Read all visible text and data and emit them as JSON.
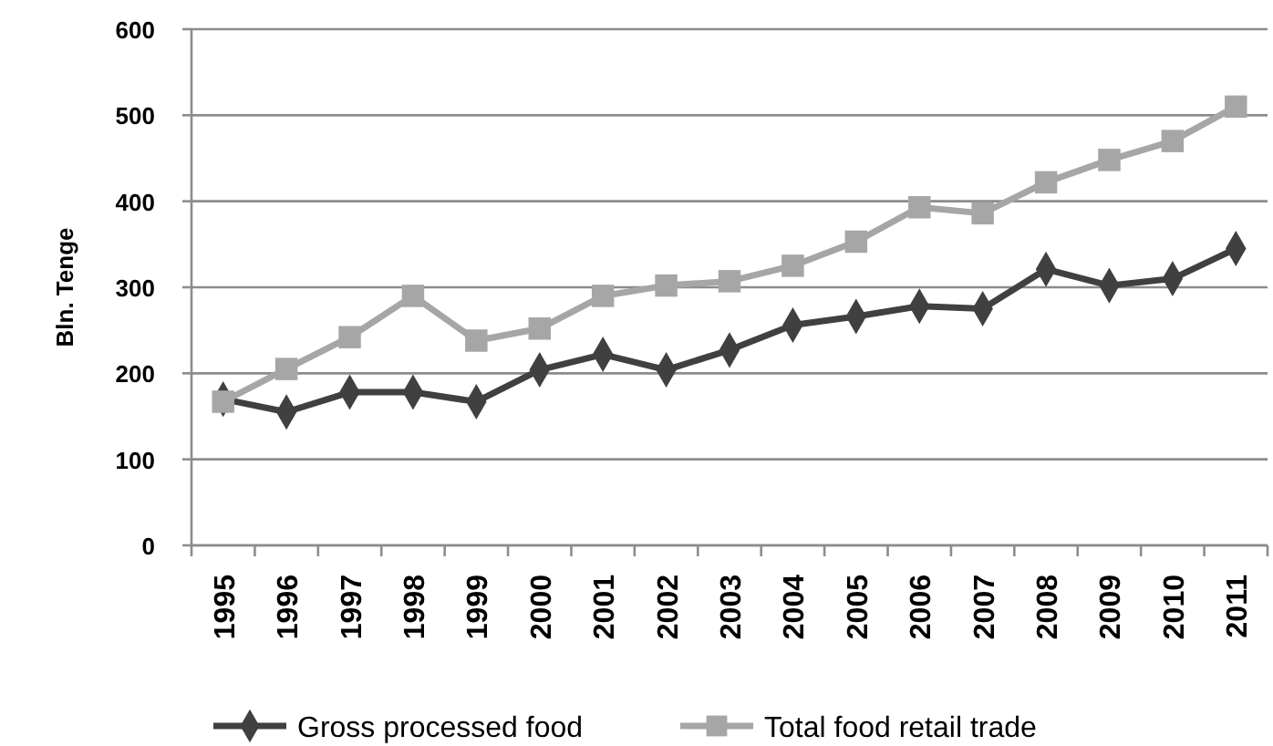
{
  "chart_data": {
    "type": "line",
    "ylabel": "Bln. Tenge",
    "categories": [
      "1995",
      "1996",
      "1997",
      "1998",
      "1999",
      "2000",
      "2001",
      "2002",
      "2003",
      "2004",
      "2005",
      "2006",
      "2007",
      "2008",
      "2009",
      "2010",
      "2011"
    ],
    "series": [
      {
        "name": "Gross processed food",
        "color": "#404040",
        "marker": "diamond",
        "values": [
          170,
          155,
          178,
          178,
          167,
          204,
          222,
          204,
          227,
          256,
          266,
          278,
          275,
          321,
          302,
          310,
          345
        ]
      },
      {
        "name": "Total food retail trade",
        "color": "#a6a6a6",
        "marker": "square",
        "values": [
          167,
          205,
          242,
          290,
          238,
          252,
          290,
          302,
          307,
          325,
          353,
          393,
          386,
          422,
          448,
          470,
          510
        ]
      }
    ],
    "ylim": [
      0,
      600
    ],
    "yticks": [
      0,
      100,
      200,
      300,
      400,
      500,
      600
    ],
    "grid": "y",
    "legend": "bottom",
    "line_style": "solid"
  }
}
